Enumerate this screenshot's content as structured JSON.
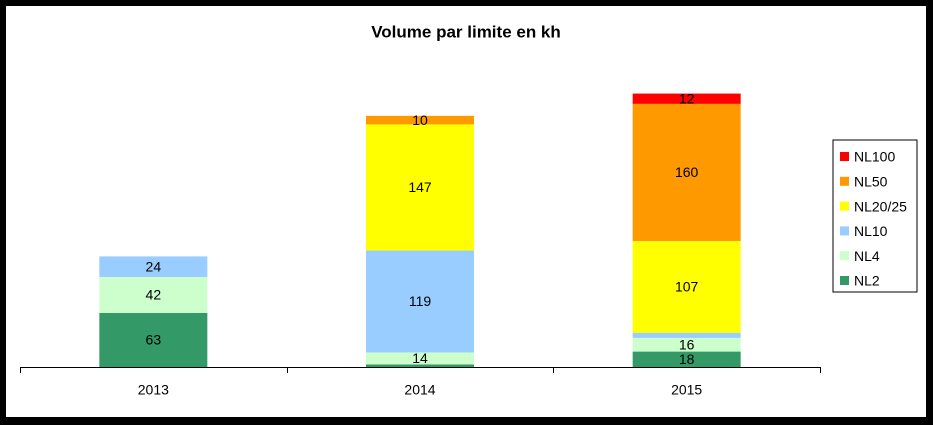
{
  "chart_data": {
    "type": "stacked_bar",
    "title": "Volume par limite en kh",
    "categories": [
      "2013",
      "2014",
      "2015"
    ],
    "series": [
      {
        "name": "NL2",
        "color": "#339966",
        "values": [
          63,
          3,
          18
        ]
      },
      {
        "name": "NL4",
        "color": "#ccffcc",
        "values": [
          42,
          14,
          16
        ]
      },
      {
        "name": "NL10",
        "color": "#99ccff",
        "values": [
          24,
          119,
          6
        ]
      },
      {
        "name": "NL20/25",
        "color": "#ffff00",
        "values": [
          null,
          147,
          107
        ]
      },
      {
        "name": "NL50",
        "color": "#ff9900",
        "values": [
          null,
          10,
          160
        ]
      },
      {
        "name": "NL100",
        "color": "#ff0000",
        "values": [
          null,
          null,
          12
        ]
      }
    ],
    "ylim": [
      0,
      350
    ],
    "legend": "right"
  }
}
